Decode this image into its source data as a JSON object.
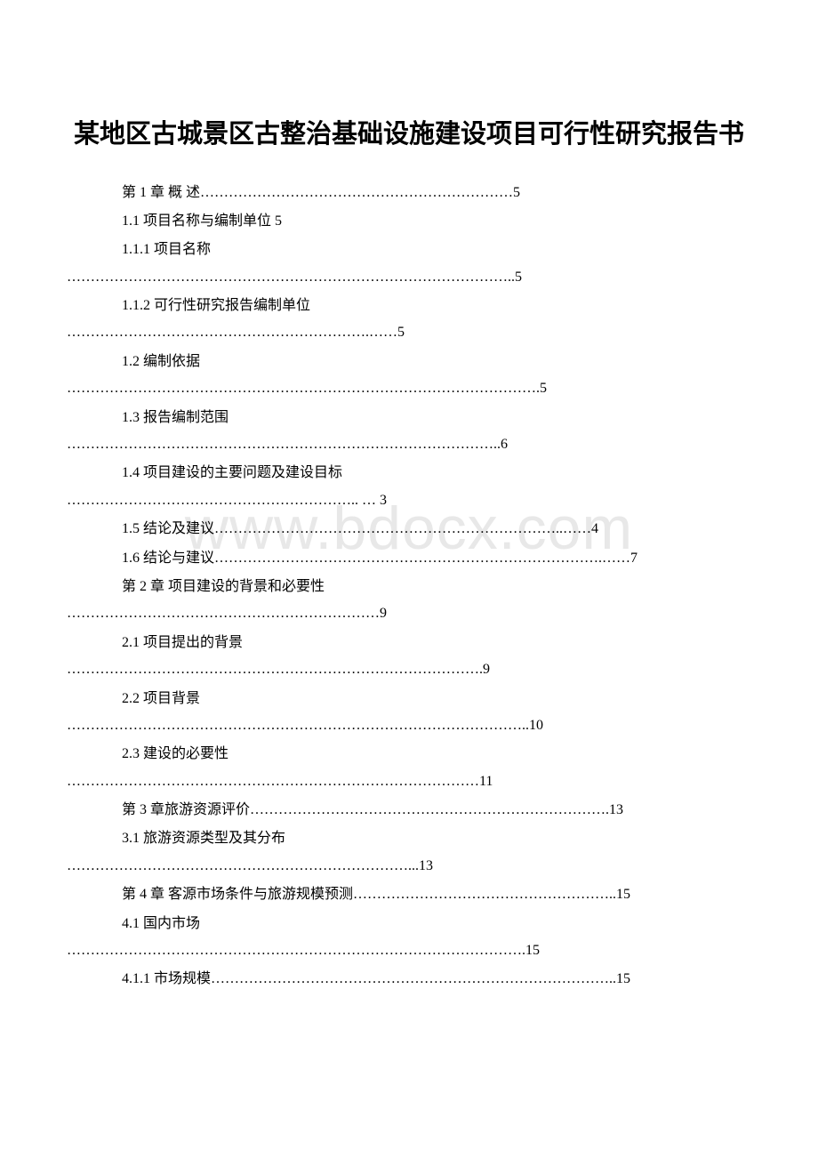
{
  "title": "某地区古城景区古整治基础设施建设项目可行性研究报告书",
  "watermark": "www.bdocx.com",
  "colors": {
    "background": "#ffffff",
    "text": "#000000",
    "watermark": "#e8e8e8"
  },
  "typography": {
    "title_fontsize": 29,
    "body_fontsize": 16,
    "font_family": "SimSun"
  },
  "toc": [
    {
      "text": "第 1 章 概 述…………………………………………………………5",
      "indent": true,
      "dotsLine": null
    },
    {
      "text": "1.1 项目名称与编制单位 5",
      "indent": true,
      "dotsLine": null
    },
    {
      "text": "1.1.1 项目名称",
      "indent": true,
      "dotsLine": "…………………………………………………………………………………..5"
    },
    {
      "text": "1.1.2 可行性研究报告编制单位",
      "indent": true,
      "dotsLine": "……………………………………………………….……5"
    },
    {
      "text": "1.2 编制依据",
      "indent": true,
      "dotsLine": "……………………………………………………………………………………….5"
    },
    {
      "text": "1.3 报告编制范围",
      "indent": true,
      "dotsLine": "………………………………………………………………………………..6"
    },
    {
      "text": "1.4 项目建设的主要问题及建设目标",
      "indent": true,
      "dotsLine": "…………………………………………………….. … 3"
    },
    {
      "text": "1.5 结论及建议………………………………………………………………..……4",
      "indent": true,
      "dotsLine": null
    },
    {
      "text": "1.6 结论与建议……………………………………………………………………….……7",
      "indent": true,
      "dotsLine": null
    },
    {
      "text": "第 2 章 项目建设的背景和必要性",
      "indent": true,
      "dotsLine": "…………………………………………………………9"
    },
    {
      "text": "2.1 项目提出的背景",
      "indent": true,
      "dotsLine": "…………………………………………………………………………….9"
    },
    {
      "text": "2.2 项目背景",
      "indent": true,
      "dotsLine": "……………………………………………………………………………………..10"
    },
    {
      "text": "2.3 建设的必要性",
      "indent": true,
      "dotsLine": "……………………………………………………………………………11"
    },
    {
      "text": "第 3 章旅游资源评价………………………………………………………………….13",
      "indent": true,
      "dotsLine": null
    },
    {
      "text": "3.1 旅游资源类型及其分布",
      "indent": true,
      "dotsLine": "………………………………………………………………...13"
    },
    {
      "text": "第 4 章 客源市场条件与旅游规模预测………………………………………………..15",
      "indent": true,
      "dotsLine": null
    },
    {
      "text": "4.1 国内市场",
      "indent": true,
      "dotsLine": "…………………………………………………………………………………….15"
    },
    {
      "text": " 4.1.1 市场规模…………………………………………………………………………..15",
      "indent": true,
      "dotsLine": null
    }
  ]
}
